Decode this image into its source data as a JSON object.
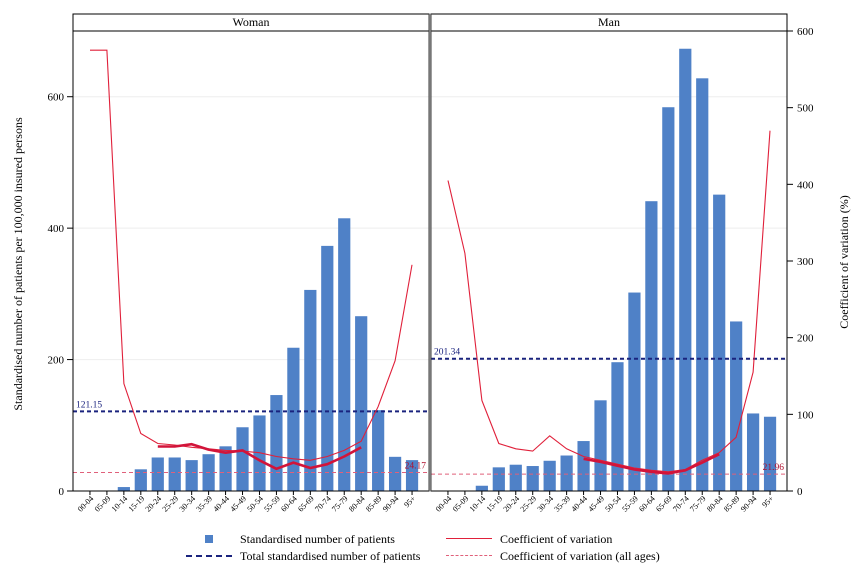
{
  "chart_data": {
    "type": "bar",
    "panels": [
      "Woman",
      "Man"
    ],
    "categories": [
      "00-04",
      "05-09",
      "10-14",
      "15-19",
      "20-24",
      "25-29",
      "30-34",
      "35-39",
      "40-44",
      "45-49",
      "50-54",
      "55-59",
      "60-64",
      "65-69",
      "70-74",
      "75-79",
      "80-84",
      "85-89",
      "90-94",
      "95+"
    ],
    "ylabel": "Standardised number of patients per 100,000 insured persons",
    "y2label": "Coefficient of variation (%)",
    "ylim": [
      0,
      700
    ],
    "y2lim": [
      0,
      600
    ],
    "yticks": [
      0,
      200,
      400,
      600
    ],
    "y2ticks": [
      0,
      100,
      200,
      300,
      400,
      500,
      600
    ],
    "series": [
      {
        "name": "Standardised number of patients",
        "kind": "bar",
        "color": "#4f81c7",
        "panels": {
          "Woman": [
            0,
            0,
            6,
            33,
            51,
            51,
            47,
            56,
            68,
            97,
            115,
            146,
            218,
            306,
            373,
            415,
            266,
            123,
            52,
            47
          ],
          "Man": [
            0,
            0,
            8,
            36,
            40,
            38,
            46,
            54,
            76,
            138,
            196,
            302,
            441,
            584,
            673,
            628,
            451,
            258,
            118,
            113
          ]
        }
      },
      {
        "name": "Coefficient of variation",
        "kind": "line",
        "color": "#e0203a",
        "panels": {
          "Woman": [
            575,
            575,
            140,
            75,
            62,
            60,
            57,
            55,
            53,
            52,
            50,
            45,
            42,
            40,
            45,
            53,
            65,
            110,
            170,
            295
          ],
          "Man": [
            405,
            310,
            118,
            62,
            55,
            52,
            72,
            55,
            45,
            40,
            35,
            30,
            27,
            25,
            28,
            40,
            50,
            70,
            155,
            470
          ]
        }
      },
      {
        "name": "Coefficient of variation (thick)",
        "kind": "line-thick",
        "color": "#d2143a",
        "panels": {
          "Woman": [
            null,
            null,
            null,
            null,
            58,
            58,
            61,
            54,
            50,
            53,
            40,
            29,
            37,
            30,
            35,
            45,
            57,
            null,
            null,
            null
          ],
          "Man": [
            null,
            null,
            null,
            null,
            null,
            null,
            null,
            null,
            42,
            38,
            33,
            28,
            25,
            23,
            27,
            37,
            48,
            null,
            null,
            null
          ]
        }
      },
      {
        "name": "Total standardised number of patients",
        "kind": "hline",
        "color": "#1a237e",
        "panels": {
          "Woman": 121.15,
          "Man": 201.34
        }
      },
      {
        "name": "Coefficient of variation (all ages)",
        "kind": "hline",
        "color": "#e0607a",
        "panels": {
          "Woman": 24.17,
          "Man": 21.96
        }
      }
    ],
    "annotations": {
      "Woman": {
        "total": "121.15",
        "cv": "24.17"
      },
      "Man": {
        "total": "201.34",
        "cv": "21.96"
      }
    },
    "legend": [
      {
        "label": "Standardised number of patients",
        "marker": "square",
        "color": "#4f81c7"
      },
      {
        "label": "Coefficient of variation",
        "marker": "line",
        "color": "#e0203a"
      },
      {
        "label": "Total standardised number of patients",
        "marker": "dash",
        "color": "#1a237e"
      },
      {
        "label": "Coefficient of variation (all ages)",
        "marker": "dash",
        "color": "#e0607a"
      }
    ],
    "grid": true,
    "legend_position": "bottom"
  }
}
